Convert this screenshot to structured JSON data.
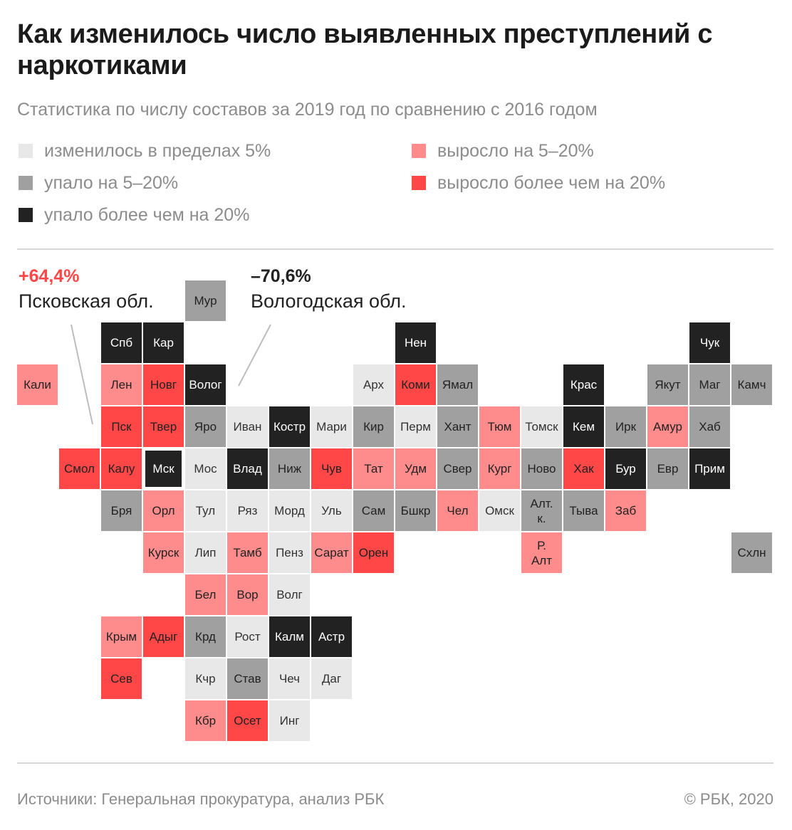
{
  "header": {
    "title": "Как изменилось число выявленных преступлений с наркотиками",
    "subtitle": "Статистика по числу составов за 2019 год по сравнению с 2016 годом"
  },
  "colors": {
    "c0": "#e8e8e8",
    "c1": "#a0a0a0",
    "c2": "#222222",
    "c3": "#ff8c8c",
    "c4": "#ff4747",
    "annotation_positive": "#ff4747",
    "annotation_negative": "#222222"
  },
  "legend": [
    {
      "label": "изменилось в пределах 5%",
      "category": "c0"
    },
    {
      "label": "упало на 5–20%",
      "category": "c1"
    },
    {
      "label": "упало более чем на 20%",
      "category": "c2"
    },
    {
      "label": "выросло на 5–20%",
      "category": "c3"
    },
    {
      "label": "выросло более чем на 20%",
      "category": "c4"
    }
  ],
  "annotations": [
    {
      "value": "+64,4%",
      "label": "Псковская обл.",
      "region": "Пск"
    },
    {
      "value": "–70,6%",
      "label": "Вологодская обл.",
      "region": "Волог"
    }
  ],
  "chart_data": {
    "type": "heatmap",
    "layout": "tile-grid-map",
    "categories": [
      "изменилось в пределах 5%",
      "упало на 5–20%",
      "упало более чем на 20%",
      "выросло на 5–20%",
      "выросло более чем на 20%"
    ],
    "regions": [
      {
        "label": "Мур",
        "col": 4,
        "row": 0,
        "category": 1
      },
      {
        "label": "Спб",
        "col": 2,
        "row": 1,
        "category": 2
      },
      {
        "label": "Кар",
        "col": 3,
        "row": 1,
        "category": 2
      },
      {
        "label": "Нен",
        "col": 9,
        "row": 1,
        "category": 2
      },
      {
        "label": "Чук",
        "col": 16,
        "row": 1,
        "category": 2
      },
      {
        "label": "Кали",
        "col": 0,
        "row": 2,
        "category": 3
      },
      {
        "label": "Лен",
        "col": 2,
        "row": 2,
        "category": 3
      },
      {
        "label": "Новг",
        "col": 3,
        "row": 2,
        "category": 4
      },
      {
        "label": "Волог",
        "col": 4,
        "row": 2,
        "category": 2
      },
      {
        "label": "Арх",
        "col": 8,
        "row": 2,
        "category": 0
      },
      {
        "label": "Коми",
        "col": 9,
        "row": 2,
        "category": 4
      },
      {
        "label": "Ямал",
        "col": 10,
        "row": 2,
        "category": 1
      },
      {
        "label": "Крас",
        "col": 13,
        "row": 2,
        "category": 2
      },
      {
        "label": "Якут",
        "col": 15,
        "row": 2,
        "category": 1
      },
      {
        "label": "Маг",
        "col": 16,
        "row": 2,
        "category": 1
      },
      {
        "label": "Камч",
        "col": 17,
        "row": 2,
        "category": 1
      },
      {
        "label": "Пск",
        "col": 2,
        "row": 3,
        "category": 4
      },
      {
        "label": "Твер",
        "col": 3,
        "row": 3,
        "category": 4
      },
      {
        "label": "Яро",
        "col": 4,
        "row": 3,
        "category": 1
      },
      {
        "label": "Иван",
        "col": 5,
        "row": 3,
        "category": 0
      },
      {
        "label": "Костр",
        "col": 6,
        "row": 3,
        "category": 2
      },
      {
        "label": "Мари",
        "col": 7,
        "row": 3,
        "category": 0
      },
      {
        "label": "Кир",
        "col": 8,
        "row": 3,
        "category": 1
      },
      {
        "label": "Перм",
        "col": 9,
        "row": 3,
        "category": 0
      },
      {
        "label": "Хант",
        "col": 10,
        "row": 3,
        "category": 1
      },
      {
        "label": "Тюм",
        "col": 11,
        "row": 3,
        "category": 3
      },
      {
        "label": "Томск",
        "col": 12,
        "row": 3,
        "category": 0
      },
      {
        "label": "Кем",
        "col": 13,
        "row": 3,
        "category": 2
      },
      {
        "label": "Ирк",
        "col": 14,
        "row": 3,
        "category": 1
      },
      {
        "label": "Амур",
        "col": 15,
        "row": 3,
        "category": 3
      },
      {
        "label": "Хаб",
        "col": 16,
        "row": 3,
        "category": 1
      },
      {
        "label": "Смол",
        "col": 1,
        "row": 4,
        "category": 4
      },
      {
        "label": "Калу",
        "col": 2,
        "row": 4,
        "category": 4
      },
      {
        "label": "Мск",
        "col": 3,
        "row": 4,
        "category": 2
      },
      {
        "label": "Мос",
        "col": 4,
        "row": 4,
        "category": 0
      },
      {
        "label": "Влад",
        "col": 5,
        "row": 4,
        "category": 2
      },
      {
        "label": "Ниж",
        "col": 6,
        "row": 4,
        "category": 1
      },
      {
        "label": "Чув",
        "col": 7,
        "row": 4,
        "category": 4
      },
      {
        "label": "Тат",
        "col": 8,
        "row": 4,
        "category": 3
      },
      {
        "label": "Удм",
        "col": 9,
        "row": 4,
        "category": 3
      },
      {
        "label": "Свер",
        "col": 10,
        "row": 4,
        "category": 1
      },
      {
        "label": "Кург",
        "col": 11,
        "row": 4,
        "category": 3
      },
      {
        "label": "Ново",
        "col": 12,
        "row": 4,
        "category": 1
      },
      {
        "label": "Хак",
        "col": 13,
        "row": 4,
        "category": 4
      },
      {
        "label": "Бур",
        "col": 14,
        "row": 4,
        "category": 2
      },
      {
        "label": "Евр",
        "col": 15,
        "row": 4,
        "category": 1
      },
      {
        "label": "Прим",
        "col": 16,
        "row": 4,
        "category": 2
      },
      {
        "label": "Бря",
        "col": 2,
        "row": 5,
        "category": 1
      },
      {
        "label": "Орл",
        "col": 3,
        "row": 5,
        "category": 3
      },
      {
        "label": "Тул",
        "col": 4,
        "row": 5,
        "category": 0
      },
      {
        "label": "Ряз",
        "col": 5,
        "row": 5,
        "category": 0
      },
      {
        "label": "Морд",
        "col": 6,
        "row": 5,
        "category": 0
      },
      {
        "label": "Уль",
        "col": 7,
        "row": 5,
        "category": 0
      },
      {
        "label": "Сам",
        "col": 8,
        "row": 5,
        "category": 1
      },
      {
        "label": "Бшкр",
        "col": 9,
        "row": 5,
        "category": 1
      },
      {
        "label": "Чел",
        "col": 10,
        "row": 5,
        "category": 3
      },
      {
        "label": "Омск",
        "col": 11,
        "row": 5,
        "category": 0
      },
      {
        "label": "Алт.\nк.",
        "col": 12,
        "row": 5,
        "category": 1
      },
      {
        "label": "Тыва",
        "col": 13,
        "row": 5,
        "category": 1
      },
      {
        "label": "Заб",
        "col": 14,
        "row": 5,
        "category": 3
      },
      {
        "label": "Курск",
        "col": 3,
        "row": 6,
        "category": 3
      },
      {
        "label": "Лип",
        "col": 4,
        "row": 6,
        "category": 0
      },
      {
        "label": "Тамб",
        "col": 5,
        "row": 6,
        "category": 3
      },
      {
        "label": "Пенз",
        "col": 6,
        "row": 6,
        "category": 0
      },
      {
        "label": "Сарат",
        "col": 7,
        "row": 6,
        "category": 3
      },
      {
        "label": "Орен",
        "col": 8,
        "row": 6,
        "category": 4
      },
      {
        "label": "Р.\nАлт",
        "col": 12,
        "row": 6,
        "category": 3
      },
      {
        "label": "Схлн",
        "col": 17,
        "row": 6,
        "category": 1
      },
      {
        "label": "Бел",
        "col": 4,
        "row": 7,
        "category": 3
      },
      {
        "label": "Вор",
        "col": 5,
        "row": 7,
        "category": 3
      },
      {
        "label": "Волг",
        "col": 6,
        "row": 7,
        "category": 0
      },
      {
        "label": "Крым",
        "col": 2,
        "row": 8,
        "category": 3
      },
      {
        "label": "Адыг",
        "col": 3,
        "row": 8,
        "category": 4
      },
      {
        "label": "Крд",
        "col": 4,
        "row": 8,
        "category": 1
      },
      {
        "label": "Рост",
        "col": 5,
        "row": 8,
        "category": 0
      },
      {
        "label": "Калм",
        "col": 6,
        "row": 8,
        "category": 2
      },
      {
        "label": "Астр",
        "col": 7,
        "row": 8,
        "category": 2
      },
      {
        "label": "Сев",
        "col": 2,
        "row": 9,
        "category": 4
      },
      {
        "label": "Кчр",
        "col": 4,
        "row": 9,
        "category": 0
      },
      {
        "label": "Став",
        "col": 5,
        "row": 9,
        "category": 1
      },
      {
        "label": "Чеч",
        "col": 6,
        "row": 9,
        "category": 0
      },
      {
        "label": "Даг",
        "col": 7,
        "row": 9,
        "category": 0
      },
      {
        "label": "Кбр",
        "col": 4,
        "row": 10,
        "category": 3
      },
      {
        "label": "Осет",
        "col": 5,
        "row": 10,
        "category": 4
      },
      {
        "label": "Инг",
        "col": 6,
        "row": 10,
        "category": 0
      }
    ]
  },
  "footer": {
    "source": "Источники: Генеральная прокуратура, анализ РБК",
    "credit": "© РБК, 2020"
  }
}
